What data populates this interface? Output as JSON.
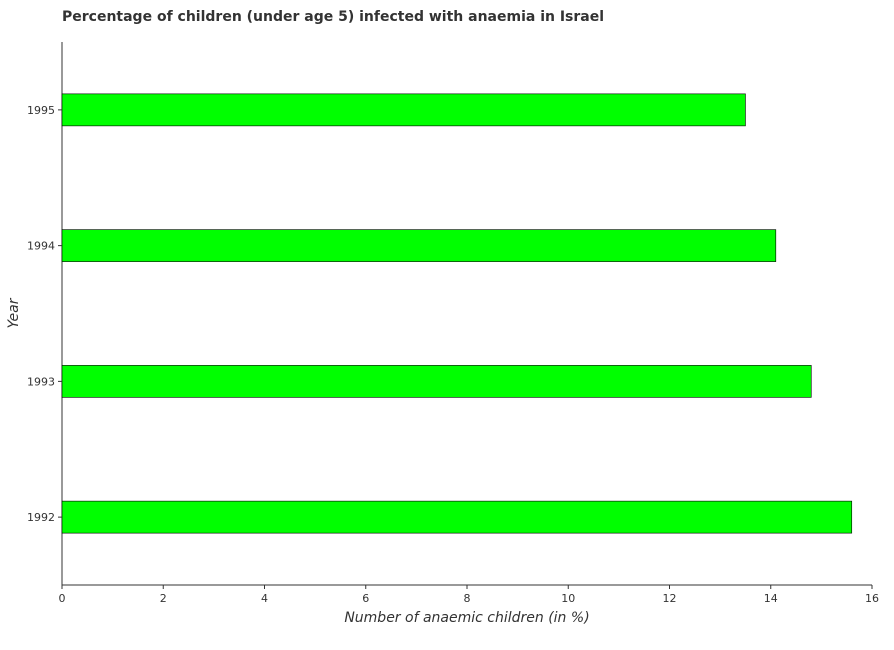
{
  "chart_data": {
    "type": "bar",
    "orientation": "horizontal",
    "title": "Percentage of children (under age 5) infected with anaemia in Israel",
    "xlabel": "Number of anaemic children (in %)",
    "ylabel": "Year",
    "categories": [
      "1992",
      "1993",
      "1994",
      "1995"
    ],
    "values": [
      15.6,
      14.8,
      14.1,
      13.5
    ],
    "xlim": [
      0,
      16
    ],
    "xticks": [
      "0",
      "2",
      "4",
      "6",
      "8",
      "10",
      "12",
      "14",
      "16"
    ],
    "grid": false,
    "legend": "none",
    "bar_color": "#00ff00",
    "bar_edge_color": "#000000"
  }
}
